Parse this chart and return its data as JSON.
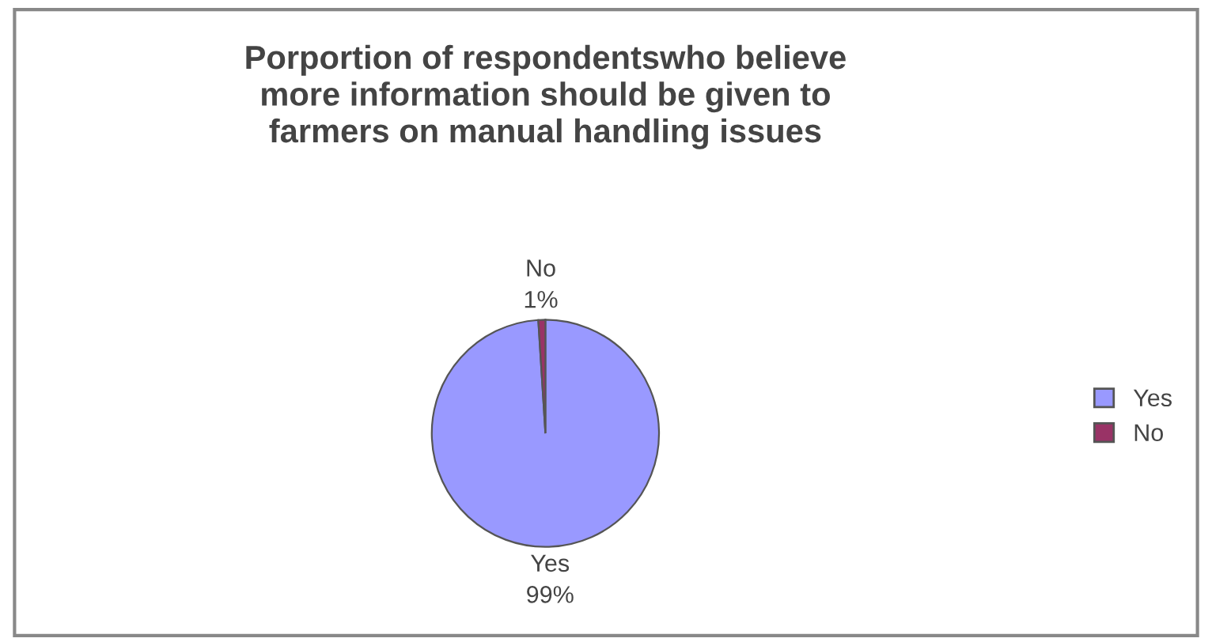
{
  "chart_data": {
    "type": "pie",
    "title": "Porportion of respondentswho believe\nmore information should be given to\nfarmers on manual handling issues",
    "categories": [
      "Yes",
      "No"
    ],
    "values": [
      99,
      1
    ],
    "colors": [
      "#9999ff",
      "#993366"
    ],
    "value_labels": [
      "99%",
      "1%"
    ],
    "legend": "right"
  }
}
